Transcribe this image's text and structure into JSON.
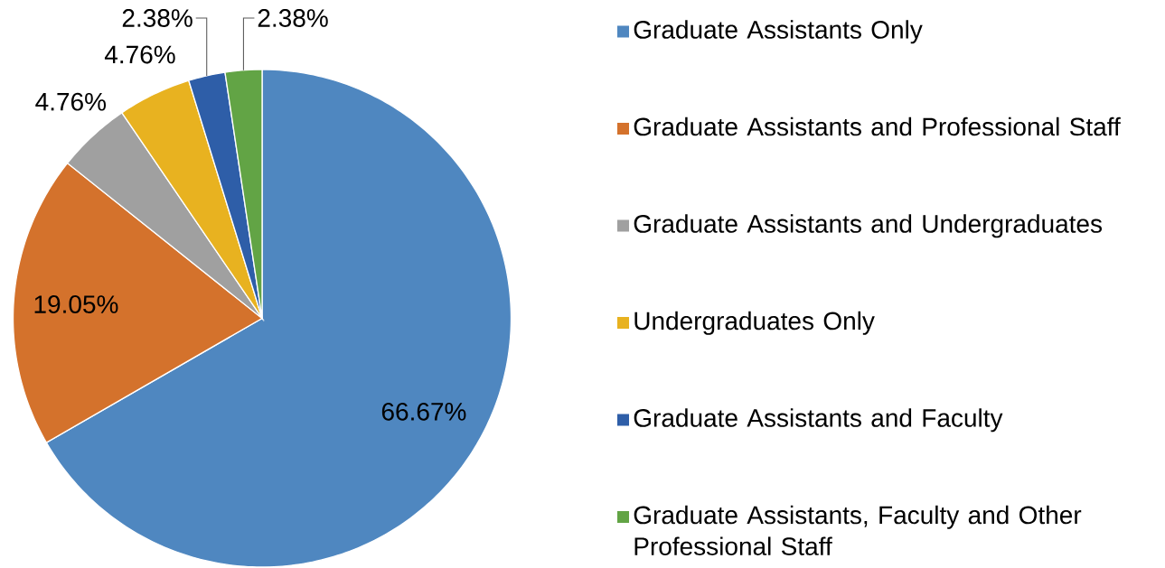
{
  "chart_data": {
    "type": "pie",
    "categories": [
      "Graduate Assistants Only",
      "Graduate Assistants and Professional Staff",
      "Graduate Assistants and Undergraduates",
      "Undergraduates Only",
      "Graduate Assistants and Faculty",
      "Graduate Assistants, Faculty and Other Professional Staff"
    ],
    "values": [
      66.67,
      19.05,
      4.76,
      4.76,
      2.38,
      2.38
    ],
    "value_labels": [
      "66.67%",
      "19.05%",
      "4.76%",
      "4.76%",
      "2.38%",
      "2.38%"
    ],
    "colors": [
      "#4f87c0",
      "#d4722c",
      "#a0a0a0",
      "#e8b220",
      "#2e5ea8",
      "#62a445"
    ],
    "legend": "right"
  }
}
